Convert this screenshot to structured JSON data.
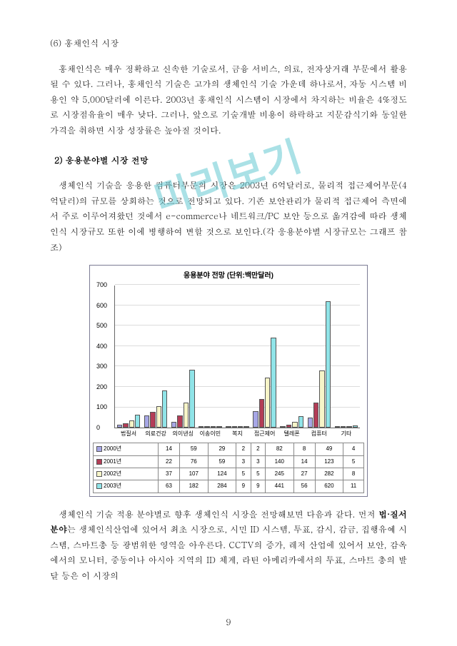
{
  "watermark": "미리보기",
  "section_num": "(6) 홍채인식 시장",
  "para1": "홍채인식은 매우 정확하고 신속한 기술로서, 금융 서비스, 의료, 전자상거래 부문에서 활용될 수 있다. 그러나, 홍채인식 기술은 고가의 생체인식 기술 가운데 하나로서, 자동 시스템 비용인 약 5,000달러에 이른다. 2003년 홍채인식 시스템이 시장에서 차지하는 비율은 4%정도로 시장점유율이 매우 낮다. 그러나, 앞으로 기술개발 비용이 하락하고 지문감식기와 동일한 가격을 취하면 시장 성장률은 높아질 것이다.",
  "subtitle2": "2) 응용분야별 시장 전망",
  "para2": "생체인식 기술을 응용한 컴퓨터부문의 시장은 2003년 6억달러로, 물리적 접근제어부문(4억달러)의 규모를 상회하는 것으로 전망되고 있다. 기존 보안관리가 물리적 접근제어 측면에서 주로 이루어져왔던 것에서 e-commerce나 네트워크/PC 보안 등으로 옮겨감에 따라 생체인식 시장규모 또한 이에 병행하여 변할 것으로 보인다.(각 응용분야별 시장규모는 그래프 참조)",
  "para3a": "생체인식 기술 적용 분야별로 향후 생체인식 시장을 전망해보면 다음과 같다. 먼저 ",
  "para3b": "법·질서 분야",
  "para3c": "는 생체인식산업에 있어서 최초 시장으로, 시민 ID 시스템, 투표, 감시, 감금, 집행유예 시스템, 스마트총 등 광범위한 영역을 아우른다. CCTV의 증가, 레저 산업에 있어서 보안, 감옥에서의 모니터, 중동이나 아시아 지역의 ID 체계, 라틴 아메리카에서의 투표, 스마트 총의 발달 등은 이 시장의",
  "page_number": "9",
  "chart": {
    "title": "응용분야 전망 (단위:백만달러)",
    "ymax": 700,
    "ytick_step": 100,
    "grid_color": "#dcdcdc",
    "categories": [
      "법질서",
      "의료건강",
      "의이낸싱",
      "이송이민",
      "복지",
      "접근제어",
      "텔레폰",
      "컴퓨터",
      "기타"
    ],
    "series": [
      {
        "label": "2000년",
        "color": "#a7a7e6",
        "values": [
          14,
          59,
          29,
          2,
          2,
          82,
          8,
          49,
          4
        ]
      },
      {
        "label": "2001년",
        "color": "#b33d57",
        "values": [
          22,
          76,
          59,
          3,
          3,
          140,
          14,
          123,
          5
        ]
      },
      {
        "label": "2002년",
        "color": "#f7f5c8",
        "values": [
          37,
          107,
          124,
          5,
          5,
          245,
          27,
          282,
          8
        ]
      },
      {
        "label": "2003년",
        "color": "#90e4e8",
        "values": [
          63,
          182,
          284,
          9,
          9,
          441,
          56,
          620,
          11
        ]
      }
    ],
    "colors": {
      "plot_bg": "#ffffff",
      "border": "#7b7b94",
      "axis": "#666666"
    }
  }
}
